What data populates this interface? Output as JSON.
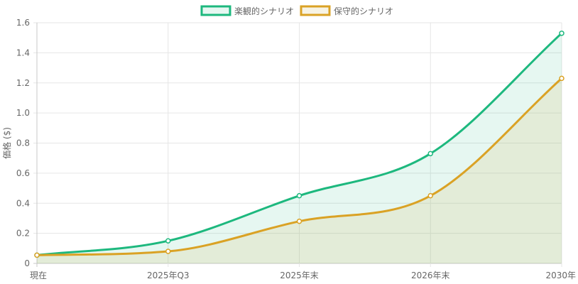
{
  "chart_data": {
    "type": "area",
    "categories": [
      "現在",
      "2025年Q3",
      "2025年末",
      "2026年末",
      "2030年"
    ],
    "ylabel": "価格 ($)",
    "ylim": [
      0,
      1.6
    ],
    "yticks": [
      "0",
      "0.2",
      "0.4",
      "0.6",
      "0.8",
      "1.0",
      "1.2",
      "1.4",
      "1.6"
    ],
    "grid": true,
    "legend_position": "top",
    "series": [
      {
        "name": "楽観的シナリオ",
        "values": [
          0.055,
          0.15,
          0.45,
          0.73,
          1.53
        ],
        "color": "#1db87e",
        "fill": "rgba(29,184,126,0.11)"
      },
      {
        "name": "保守的シナリオ",
        "values": [
          0.055,
          0.08,
          0.28,
          0.45,
          1.23
        ],
        "color": "#daa225",
        "fill": "rgba(216,196,120,0.2)"
      }
    ]
  }
}
